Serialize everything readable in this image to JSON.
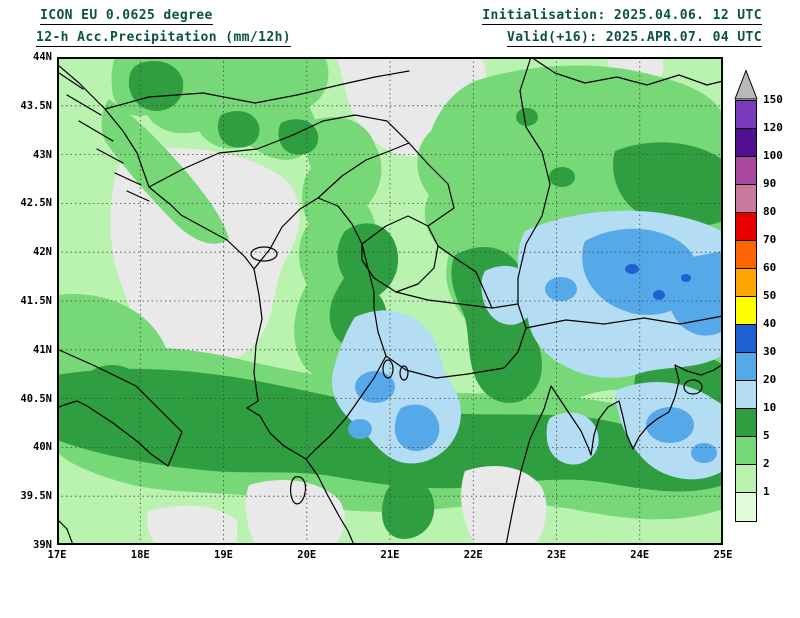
{
  "header": {
    "model_line": "ICON EU 0.0625 degree",
    "product_line": "12-h Acc.Precipitation (mm/12h)",
    "init_line": "Initialisation: 2025.04.06. 12 UTC",
    "valid_line": "Valid(+16): 2025.APR.07. 04 UTC",
    "text_color": "#0a5245"
  },
  "map": {
    "background": "#e9e9e9",
    "frame_color": "#000000",
    "grid_color": "#444444",
    "coast_border_color": "#000000",
    "lat_labels": [
      "44N",
      "43.5N",
      "43N",
      "42.5N",
      "42N",
      "41.5N",
      "41N",
      "40.5N",
      "40N",
      "39.5N",
      "39N"
    ],
    "lon_labels": [
      "17E",
      "18E",
      "19E",
      "20E",
      "21E",
      "22E",
      "23E",
      "24E",
      "25E"
    ]
  },
  "legend": {
    "arrow_color": "#b8b8b8",
    "entries": [
      {
        "label": "150",
        "color": "#7a3bbd"
      },
      {
        "label": "120",
        "color": "#51108f"
      },
      {
        "label": "100",
        "color": "#a8489e"
      },
      {
        "label": "90",
        "color": "#c9799f"
      },
      {
        "label": "80",
        "color": "#e60000"
      },
      {
        "label": "70",
        "color": "#ff6600"
      },
      {
        "label": "60",
        "color": "#ffa500"
      },
      {
        "label": "50",
        "color": "#ffff00"
      },
      {
        "label": "40",
        "color": "#1e5fd2"
      },
      {
        "label": "30",
        "color": "#56a9e8"
      },
      {
        "label": "20",
        "color": "#b4dcf2"
      },
      {
        "label": "10",
        "color": "#2e9e40"
      },
      {
        "label": "5",
        "color": "#77d877"
      },
      {
        "label": "2",
        "color": "#baf2b0"
      },
      {
        "label": "1",
        "color": "#e2fbda"
      }
    ]
  },
  "chart_data": {
    "type": "heatmap",
    "title": "12-h Acc.Precipitation (mm/12h)",
    "model": "ICON EU 0.0625 degree",
    "initialisation": "2025.04.06. 12 UTC",
    "valid": "2025.APR.07. 04 UTC",
    "forecast_step": "+16",
    "x_axis_ticks": [
      "17E",
      "18E",
      "19E",
      "20E",
      "21E",
      "22E",
      "23E",
      "24E",
      "25E"
    ],
    "y_axis_ticks": [
      "44N",
      "43.5N",
      "43N",
      "42.5N",
      "42N",
      "41.5N",
      "41N",
      "40.5N",
      "40N",
      "39.5N",
      "39N"
    ],
    "scale_levels_mm": [
      1,
      2,
      5,
      10,
      20,
      30,
      40,
      50,
      60,
      70,
      80,
      90,
      100,
      120,
      150
    ],
    "notes": "Green areas 1-10 mm over Adriatic and Balkans; pale/medium blue 10-30 mm over central Albania-North Macedonia, eastern Serbia-western Bulgaria and northern Aegean; dry gray gaps over Bosnia interior, top-centre and along the bottom edge"
  }
}
